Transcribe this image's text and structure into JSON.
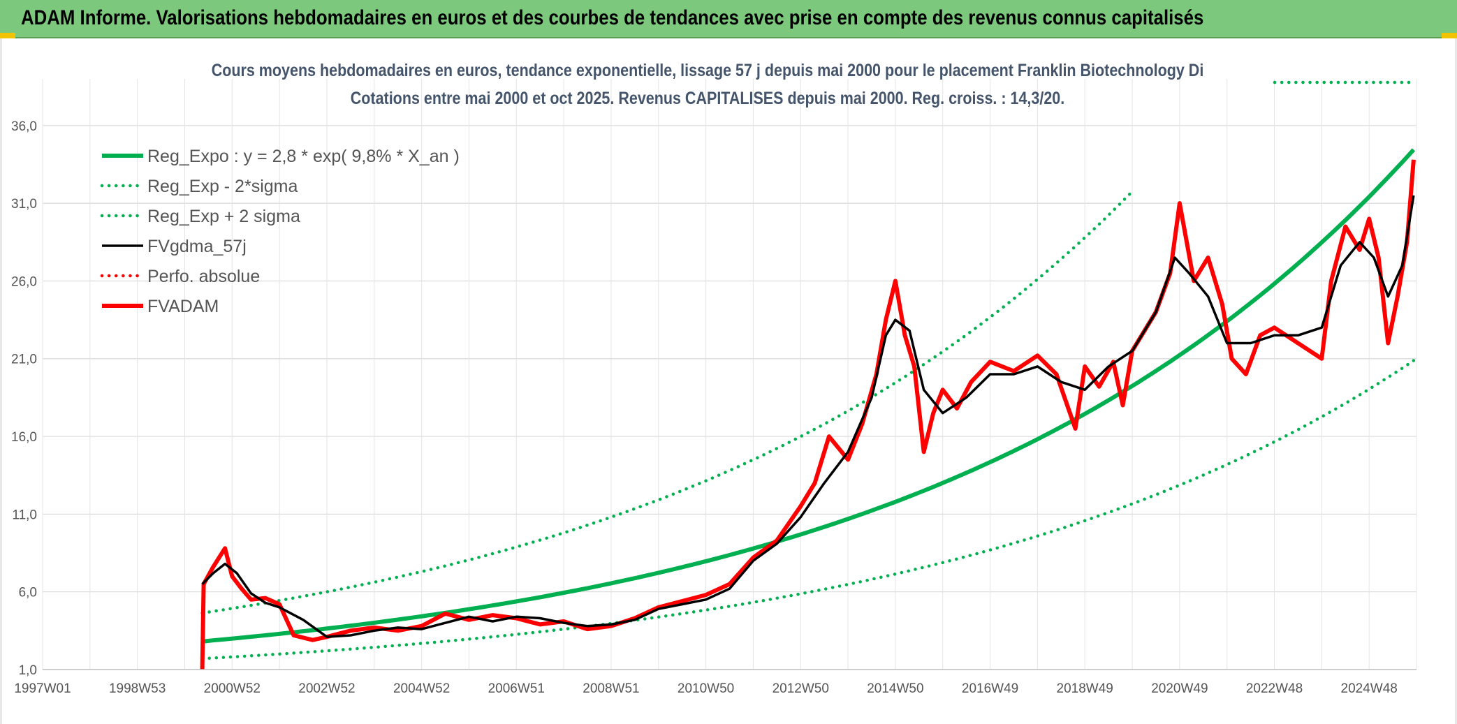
{
  "banner": {
    "title": "ADAM Informe. Valorisations hebdomadaires en euros et des courbes de tendances avec prise en compte des revenus connus capitalisés"
  },
  "chart_data": {
    "type": "line",
    "title": "Cours moyens hebdomadaires en euros, tendance exponentielle, lissage 57 j depuis mai 2000 pour le placement Franklin Biotechnology Di",
    "subtitle": "Cotations entre mai 2000 et oct 2025. Revenus CAPITALISES depuis mai 2000. Reg. croiss. : 14,3/20.",
    "xlabel": "",
    "ylabel": "",
    "x_range": [
      1997.0,
      2026.0
    ],
    "ylim": [
      1.0,
      39.0
    ],
    "y_ticks": [
      "1,0",
      "6,0",
      "11,0",
      "16,0",
      "21,0",
      "26,0",
      "31,0",
      "36,0"
    ],
    "y_tick_values": [
      1,
      6,
      11,
      16,
      21,
      26,
      31,
      36
    ],
    "x_ticks": [
      "1997W01",
      "1998W53",
      "2000W52",
      "2002W52",
      "2004W52",
      "2006W51",
      "2008W51",
      "2010W50",
      "2012W50",
      "2014W50",
      "2016W49",
      "2018W49",
      "2020W49",
      "2022W48",
      "2024W48"
    ],
    "x_tick_values": [
      1997.0,
      1999.0,
      2001.0,
      2003.0,
      2005.0,
      2007.0,
      2009.0,
      2011.0,
      2013.0,
      2015.0,
      2017.0,
      2019.0,
      2021.0,
      2023.0,
      2025.0
    ],
    "regression": {
      "a": 2.8,
      "rate": 0.098,
      "x0": 2000.33
    },
    "sigma_factor": 1.65,
    "series": [
      {
        "name": "Reg_Expo : y = 2,8 * exp( 9,8% *  X_an )",
        "style": "solid-thick",
        "color": "#00b050",
        "x_range": [
          2000.37,
          2025.94
        ]
      },
      {
        "name": "Reg_Exp - 2*sigma",
        "style": "dotted",
        "color": "#00b050",
        "x_range": [
          2000.37,
          2025.94
        ]
      },
      {
        "name": "Reg_Exp + 2 sigma",
        "style": "dotted",
        "color": "#00b050",
        "x_range": [
          2000.37,
          2020.0
        ]
      },
      {
        "name": "FVgdma_57j",
        "style": "solid",
        "color": "#000000",
        "x": [
          2000.37,
          2000.6,
          2000.85,
          2001.1,
          2001.4,
          2001.7,
          2002.0,
          2002.5,
          2003.0,
          2003.5,
          2004.0,
          2004.5,
          2005.0,
          2005.5,
          2006.0,
          2006.5,
          2007.0,
          2007.5,
          2008.0,
          2008.5,
          2009.0,
          2009.5,
          2010.0,
          2010.5,
          2011.0,
          2011.5,
          2012.0,
          2012.5,
          2013.0,
          2013.5,
          2014.0,
          2014.5,
          2014.8,
          2015.0,
          2015.3,
          2015.6,
          2016.0,
          2016.5,
          2017.0,
          2017.5,
          2018.0,
          2018.5,
          2019.0,
          2019.5,
          2020.0,
          2020.5,
          2020.9,
          2021.2,
          2021.6,
          2022.0,
          2022.5,
          2023.0,
          2023.5,
          2024.0,
          2024.4,
          2024.8,
          2025.1,
          2025.4,
          2025.7,
          2025.94
        ],
        "y": [
          6.5,
          7.2,
          7.8,
          7.2,
          5.9,
          5.3,
          5.0,
          4.2,
          3.1,
          3.2,
          3.5,
          3.7,
          3.6,
          4.0,
          4.4,
          4.1,
          4.4,
          4.3,
          4.0,
          3.8,
          3.9,
          4.2,
          4.9,
          5.2,
          5.5,
          6.2,
          8.0,
          9.1,
          10.8,
          13.0,
          15.0,
          18.5,
          22.5,
          23.5,
          22.8,
          19.0,
          17.5,
          18.5,
          20.0,
          20.0,
          20.5,
          19.5,
          19.0,
          20.5,
          21.5,
          24.0,
          27.5,
          26.5,
          25.0,
          22.0,
          22.0,
          22.5,
          22.5,
          23.0,
          27.0,
          28.5,
          27.5,
          25.0,
          27.0,
          31.5
        ]
      },
      {
        "name": "Perfo. absolue",
        "style": "dotted",
        "color": "#ff0000",
        "x_range": []
      },
      {
        "name": "FVADAM",
        "style": "solid-thick",
        "color": "#ff0000",
        "x": [
          2000.37,
          2000.4,
          2000.6,
          2000.85,
          2001.0,
          2001.2,
          2001.4,
          2001.7,
          2002.0,
          2002.3,
          2002.7,
          2003.0,
          2003.5,
          2004.0,
          2004.5,
          2005.0,
          2005.5,
          2006.0,
          2006.5,
          2007.0,
          2007.5,
          2008.0,
          2008.5,
          2009.0,
          2009.5,
          2010.0,
          2010.5,
          2011.0,
          2011.5,
          2012.0,
          2012.5,
          2013.0,
          2013.3,
          2013.6,
          2014.0,
          2014.3,
          2014.6,
          2014.8,
          2015.0,
          2015.2,
          2015.4,
          2015.6,
          2015.8,
          2016.0,
          2016.3,
          2016.6,
          2017.0,
          2017.5,
          2018.0,
          2018.4,
          2018.8,
          2019.0,
          2019.3,
          2019.6,
          2019.8,
          2020.0,
          2020.2,
          2020.5,
          2020.8,
          2021.0,
          2021.3,
          2021.6,
          2021.9,
          2022.1,
          2022.4,
          2022.7,
          2023.0,
          2023.5,
          2024.0,
          2024.2,
          2024.5,
          2024.8,
          2025.0,
          2025.2,
          2025.4,
          2025.6,
          2025.8,
          2025.94
        ],
        "y": [
          1.0,
          6.5,
          7.6,
          8.8,
          7.0,
          6.2,
          5.5,
          5.6,
          5.2,
          3.2,
          2.9,
          3.1,
          3.5,
          3.7,
          3.5,
          3.8,
          4.6,
          4.2,
          4.5,
          4.3,
          3.9,
          4.1,
          3.6,
          3.8,
          4.3,
          5.0,
          5.4,
          5.8,
          6.5,
          8.2,
          9.3,
          11.5,
          13.0,
          16.0,
          14.5,
          16.8,
          20.0,
          23.5,
          26.0,
          22.5,
          20.5,
          15.0,
          17.5,
          19.0,
          17.8,
          19.5,
          20.8,
          20.2,
          21.2,
          20.0,
          16.5,
          20.5,
          19.2,
          20.8,
          18.0,
          21.5,
          22.5,
          24.0,
          26.5,
          31.0,
          26.0,
          27.5,
          24.5,
          21.0,
          20.0,
          22.5,
          23.0,
          22.0,
          21.0,
          26.0,
          29.5,
          28.0,
          30.0,
          27.5,
          22.0,
          25.0,
          28.5,
          33.8
        ]
      }
    ],
    "legend": [
      "Reg_Expo : y = 2,8 * exp( 9,8% *  X_an )",
      "Reg_Exp - 2*sigma",
      "Reg_Exp + 2 sigma",
      "FVgdma_57j",
      "Perfo. absolue",
      "FVADAM"
    ],
    "legend_position": "top-left",
    "grid": true
  }
}
